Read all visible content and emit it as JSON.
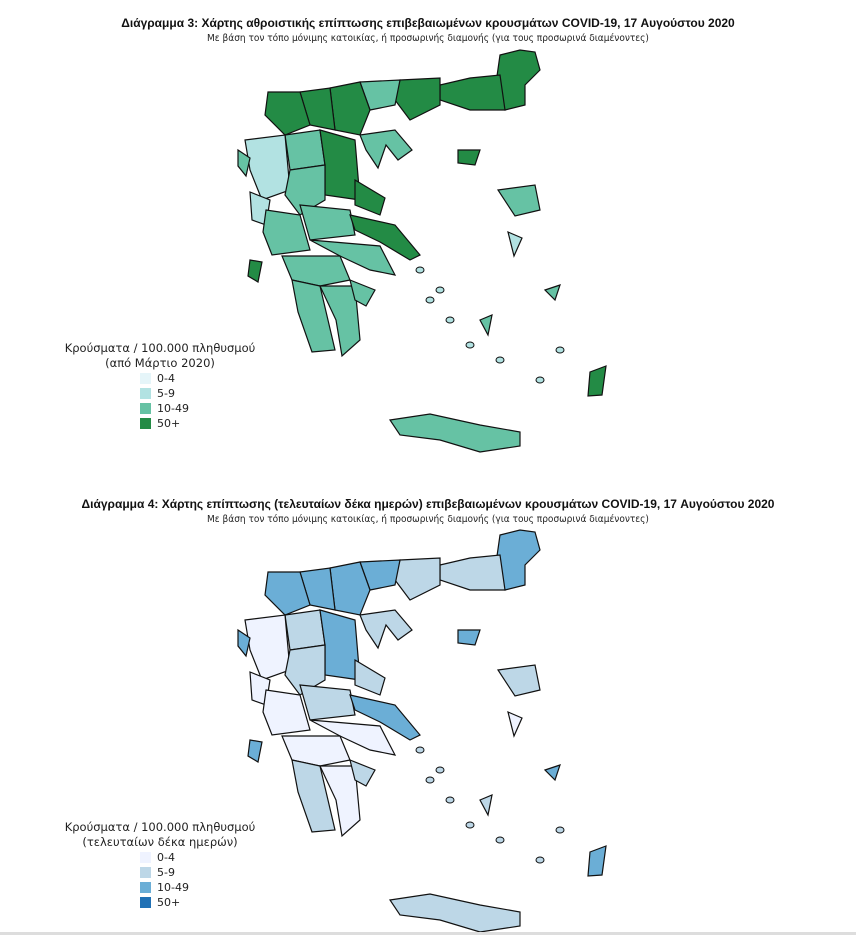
{
  "maps": [
    {
      "title": "Διάγραμμα 3: Χάρτης αθροιστικής επίπτωσης επιβεβαιωμένων κρουσμάτων COVID-19, 17 Αυγούστου 2020",
      "subtitle": "Με βάση τον τόπο μόνιμης κατοικίας, ή προσωρινής διαμονής (για τους προσωρινά διαμένοντες)",
      "legend": {
        "title": "Κρούσματα / 100.000 πληθυσμού",
        "subtitle": "(από Μάρτιο 2020)",
        "items": [
          {
            "label": "0-4",
            "color": "#e5f5f9"
          },
          {
            "label": "5-9",
            "color": "#b2e2e2"
          },
          {
            "label": "10-49",
            "color": "#66c2a4"
          },
          {
            "label": "50+",
            "color": "#238b45"
          }
        ]
      },
      "levels": [
        3,
        3,
        3,
        2,
        3,
        2,
        3,
        3,
        2,
        3,
        1,
        2,
        3,
        1,
        2,
        2,
        3,
        2,
        2,
        2,
        2,
        2,
        2,
        3,
        2,
        1,
        2,
        3,
        3,
        2,
        2
      ]
    },
    {
      "title": "Διάγραμμα 4: Χάρτης επίπτωσης (τελευταίων δέκα ημερών) επιβεβαιωμένων κρουσμάτων COVID-19, 17 Αυγούστου 2020",
      "subtitle": "Με βάση τον τόπο μόνιμης κατοικίας, ή προσωρινής διαμονής (για τους προσωρινά διαμένοντες)",
      "legend": {
        "title": "Κρούσματα / 100.000 πληθυσμού",
        "subtitle": "(τελευταίων δέκα ημερών)",
        "items": [
          {
            "label": "0-4",
            "color": "#eff3ff"
          },
          {
            "label": "5-9",
            "color": "#bdd7e7"
          },
          {
            "label": "10-49",
            "color": "#6baed6"
          },
          {
            "label": "50+",
            "color": "#2171b5"
          }
        ]
      },
      "levels": [
        2,
        1,
        1,
        2,
        2,
        1,
        2,
        2,
        1,
        2,
        0,
        1,
        1,
        0,
        0,
        1,
        2,
        0,
        0,
        1,
        0,
        1,
        1,
        2,
        1,
        0,
        2,
        2,
        2,
        1,
        2
      ]
    }
  ]
}
